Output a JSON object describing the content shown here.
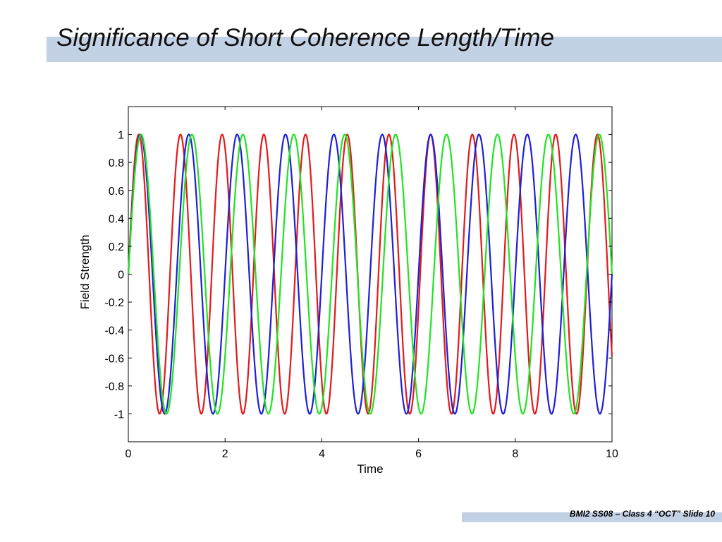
{
  "slide": {
    "title": "Significance of Short Coherence Length/Time",
    "footer": "BMI2 SS08 – Class 4 “OCT” Slide 10",
    "accent_color": "#c3d1e4"
  },
  "chart_data": {
    "type": "line",
    "title": "",
    "xlabel": "Time",
    "ylabel": "Field Strength",
    "xlim": [
      0,
      10
    ],
    "ylim": [
      -1.2,
      1.2
    ],
    "x_ticks": [
      "0",
      "2",
      "4",
      "6",
      "8",
      "10"
    ],
    "y_ticks": [
      "1",
      "0.8",
      "0.6",
      "0.4",
      "0.2",
      "0",
      "-0.2",
      "-0.4",
      "-0.6",
      "-0.8",
      "-1"
    ],
    "grid": false,
    "series": [
      {
        "function": "sin(2*pi*f*t)",
        "frequency": 1.16,
        "color": "#e31a1c"
      },
      {
        "function": "sin(2*pi*f*t)",
        "frequency": 1.0,
        "color": "#1f1fd6"
      },
      {
        "function": "sin(2*pi*f*t)",
        "frequency": 0.95,
        "color": "#22e322"
      }
    ]
  }
}
